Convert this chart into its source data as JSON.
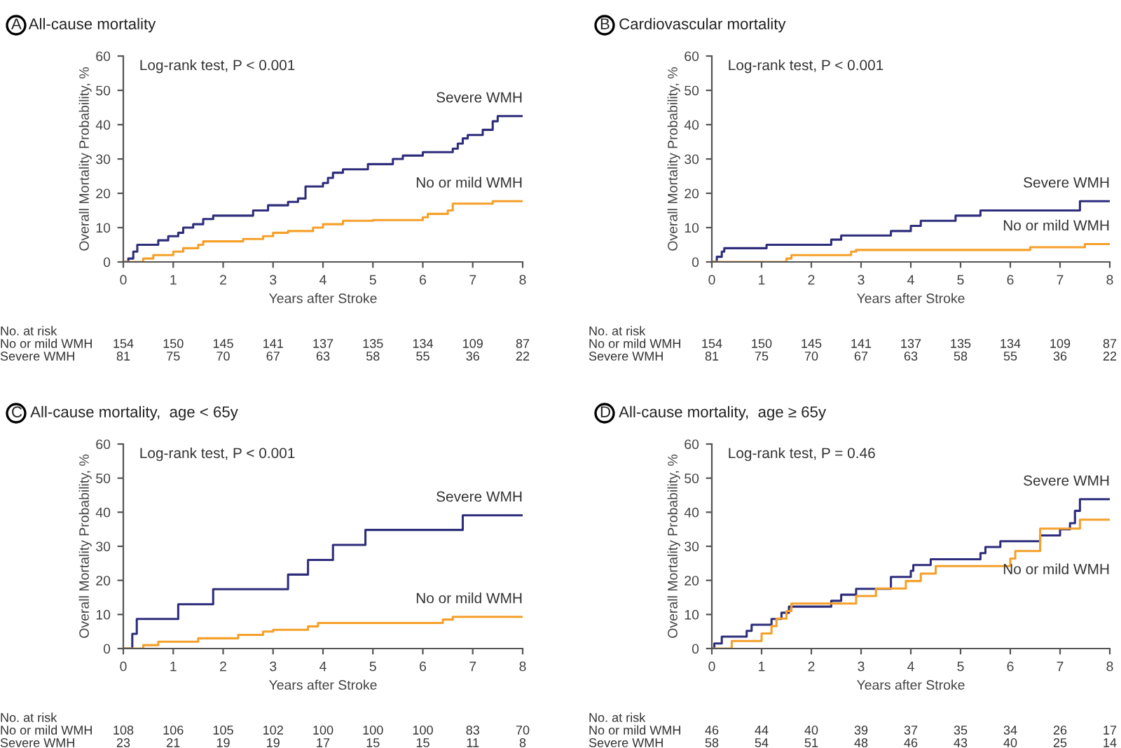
{
  "chart_data": [
    {
      "type": "step",
      "title": "A  All-cause mortality",
      "xlabel": "Years after Stroke",
      "ylabel": "Overall Mortality Probability, %",
      "xlim": [
        0,
        8
      ],
      "ylim": [
        0,
        60
      ],
      "xticks": [
        0,
        1,
        2,
        3,
        4,
        5,
        6,
        7,
        8
      ],
      "yticks": [
        0,
        10,
        20,
        30,
        40,
        50,
        60
      ],
      "grid": false,
      "legend": false,
      "marker": "none",
      "line_style": "solid",
      "annotations": [
        "Log-rank test, P < 0.001",
        "No. at risk",
        "No or mild WMH",
        "154",
        "150",
        "145",
        "141",
        "137",
        "135",
        "134",
        "109",
        "87",
        "Severe WMH",
        "81",
        "75",
        "70",
        "67",
        "63",
        "58",
        "55",
        "36",
        "22"
      ],
      "series": [
        {
          "name": "Severe WMH",
          "color": "#2e2d7c",
          "x": [
            0,
            0.1,
            0.2,
            0.28,
            0.7,
            0.9,
            1.1,
            1.2,
            1.4,
            1.6,
            1.8,
            2.6,
            2.9,
            3.3,
            3.5,
            3.65,
            4.0,
            4.1,
            4.2,
            4.4,
            4.9,
            5.4,
            5.6,
            6.0,
            6.6,
            6.7,
            6.8,
            6.9,
            7.2,
            7.4,
            7.5,
            8.0
          ],
          "values": [
            0,
            1,
            3,
            5,
            6.3,
            7.5,
            8.5,
            10,
            11,
            12.5,
            13.5,
            15,
            16.5,
            17.5,
            18.5,
            22,
            23,
            24.5,
            26,
            27,
            28.5,
            30,
            31,
            32,
            33,
            34.5,
            36,
            37,
            38.5,
            41,
            42.5,
            42.5
          ]
        },
        {
          "name": "No or mild WMH",
          "color": "#f5a02a",
          "x": [
            0,
            0.4,
            0.6,
            1.0,
            1.2,
            1.5,
            1.6,
            2.4,
            2.8,
            3.0,
            3.3,
            3.8,
            4.0,
            4.4,
            5.0,
            6.0,
            6.1,
            6.5,
            6.6,
            7.4,
            8.0
          ],
          "values": [
            0,
            1,
            2,
            3,
            4,
            5,
            6,
            6.7,
            7.5,
            8.5,
            9,
            10,
            11,
            12,
            12.2,
            13,
            14,
            15,
            17,
            17.7,
            17.7
          ]
        }
      ]
    },
    {
      "type": "step",
      "title": "B  Cardiovascular mortality",
      "xlabel": "Years after Stroke",
      "ylabel": "Overall Mortality Probability, %",
      "xlim": [
        0,
        8
      ],
      "ylim": [
        0,
        60
      ],
      "xticks": [
        0,
        1,
        2,
        3,
        4,
        5,
        6,
        7,
        8
      ],
      "yticks": [
        0,
        10,
        20,
        30,
        40,
        50,
        60
      ],
      "grid": false,
      "legend": false,
      "marker": "none",
      "line_style": "solid",
      "annotations": [
        "Log-rank test, P < 0.001",
        "No. at risk",
        "No or mild WMH",
        "154",
        "150",
        "145",
        "141",
        "137",
        "135",
        "134",
        "109",
        "87",
        "Severe WMH",
        "81",
        "75",
        "70",
        "67",
        "63",
        "58",
        "55",
        "36",
        "22"
      ],
      "series": [
        {
          "name": "Severe WMH",
          "color": "#2e2d7c",
          "x": [
            0,
            0.1,
            0.2,
            0.25,
            1.1,
            2.4,
            2.6,
            3.6,
            4.0,
            4.2,
            4.9,
            5.4,
            7.4,
            8.0
          ],
          "values": [
            0,
            1.5,
            3,
            4,
            5,
            6.5,
            7.7,
            9,
            10.5,
            12,
            13.5,
            15,
            17.7,
            17.7
          ]
        },
        {
          "name": "No or mild WMH",
          "color": "#f5a02a",
          "x": [
            0,
            1.5,
            1.6,
            2.8,
            2.9,
            6.4,
            7.5,
            8.0
          ],
          "values": [
            0,
            1,
            2,
            3,
            3.5,
            4.3,
            5.2,
            5.2
          ]
        }
      ]
    },
    {
      "type": "step",
      "title": "C  All-cause mortality,  age < 65y",
      "xlabel": "Years after Stroke",
      "ylabel": "Overall Mortality Probability, %",
      "xlim": [
        0,
        8
      ],
      "ylim": [
        0,
        60
      ],
      "xticks": [
        0,
        1,
        2,
        3,
        4,
        5,
        6,
        7,
        8
      ],
      "yticks": [
        0,
        10,
        20,
        30,
        40,
        50,
        60
      ],
      "grid": false,
      "legend": false,
      "marker": "none",
      "line_style": "solid",
      "annotations": [
        "Log-rank test, P < 0.001",
        "No. at risk",
        "No or mild WMH",
        "108",
        "106",
        "105",
        "102",
        "100",
        "100",
        "100",
        "83",
        "70",
        "Severe WMH",
        "23",
        "21",
        "19",
        "19",
        "17",
        "15",
        "15",
        "11",
        "8"
      ],
      "series": [
        {
          "name": "Severe WMH",
          "color": "#2e2d7c",
          "x": [
            0,
            0.18,
            0.27,
            1.1,
            1.8,
            3.3,
            3.7,
            4.2,
            4.85,
            6.8,
            8.0
          ],
          "values": [
            0,
            4.3,
            8.7,
            13,
            17.4,
            21.7,
            26,
            30.4,
            34.8,
            39.1,
            39.1
          ]
        },
        {
          "name": "No or mild WMH",
          "color": "#f5a02a",
          "x": [
            0,
            0.4,
            0.7,
            1.5,
            2.3,
            2.8,
            3.0,
            3.7,
            3.9,
            6.4,
            6.6,
            8.0
          ],
          "values": [
            0,
            1,
            2,
            3,
            4,
            5,
            5.5,
            6.5,
            7.5,
            8.5,
            9.3,
            9.3
          ]
        }
      ]
    },
    {
      "type": "step",
      "title": "D  All-cause mortality,  age ≥ 65y",
      "xlabel": "Years after Stroke",
      "ylabel": "Overall Mortality Probability, %",
      "xlim": [
        0,
        8
      ],
      "ylim": [
        0,
        60
      ],
      "xticks": [
        0,
        1,
        2,
        3,
        4,
        5,
        6,
        7,
        8
      ],
      "yticks": [
        0,
        10,
        20,
        30,
        40,
        50,
        60
      ],
      "grid": false,
      "legend": false,
      "marker": "none",
      "line_style": "solid",
      "annotations": [
        "Log-rank test, P = 0.46",
        "No. at risk",
        "No or mild WMH",
        "46",
        "44",
        "40",
        "39",
        "37",
        "35",
        "34",
        "26",
        "17",
        "Severe WMH",
        "58",
        "54",
        "51",
        "48",
        "46",
        "43",
        "40",
        "25",
        "14"
      ],
      "series": [
        {
          "name": "Severe WMH",
          "color": "#2e2d7c",
          "x": [
            0,
            0.05,
            0.2,
            0.7,
            0.8,
            1.2,
            1.4,
            1.55,
            2.4,
            2.6,
            2.9,
            3.6,
            4.0,
            4.05,
            4.4,
            5.4,
            5.5,
            5.8,
            6.6,
            7.0,
            7.2,
            7.3,
            7.4,
            8.0
          ],
          "values": [
            0,
            1.5,
            3.5,
            5.2,
            7,
            8.7,
            10.5,
            12.3,
            14,
            15.8,
            17.5,
            21,
            22.8,
            24.5,
            26.2,
            28,
            29.8,
            31.5,
            33.2,
            35,
            36.8,
            40.4,
            43.8,
            43.8
          ]
        },
        {
          "name": "No or mild WMH",
          "color": "#f5a02a",
          "x": [
            0,
            0.4,
            1.0,
            1.2,
            1.3,
            1.5,
            1.6,
            2.9,
            3.3,
            3.9,
            4.2,
            4.5,
            6.0,
            6.1,
            6.6,
            7.4,
            8.0
          ],
          "values": [
            0,
            2.2,
            4.4,
            6.6,
            8.8,
            11,
            13.2,
            15.4,
            17.6,
            19.8,
            22,
            24.2,
            26.4,
            28.6,
            35.2,
            37.8,
            37.8
          ]
        }
      ]
    }
  ]
}
